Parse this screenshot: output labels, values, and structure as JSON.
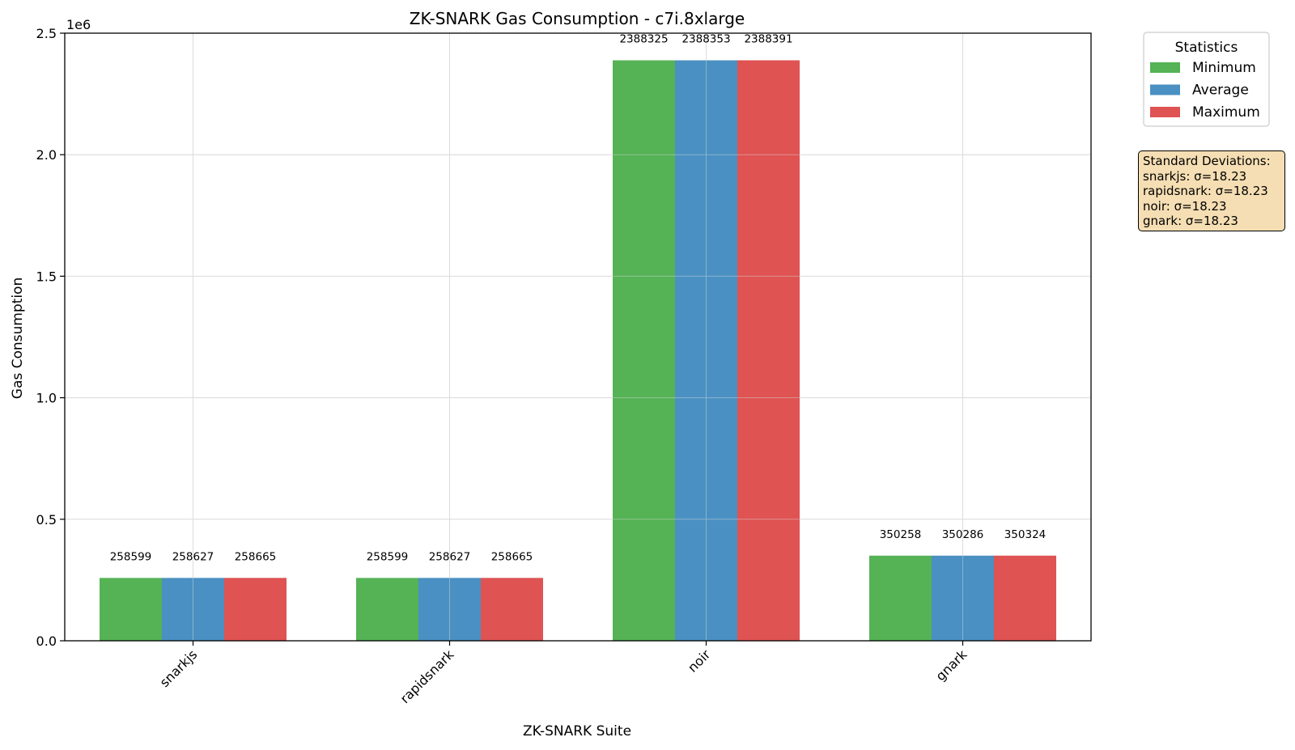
{
  "chart_data": {
    "type": "bar",
    "title": "ZK-SNARK Gas Consumption - c7i.8xlarge",
    "xlabel": "ZK-SNARK Suite",
    "ylabel": "Gas Consumption",
    "y_offset_label": "1e6",
    "ylim": [
      0,
      2.5
    ],
    "y_scale": 1000000,
    "y_ticks": [
      "0.0",
      "0.5",
      "1.0",
      "1.5",
      "2.0",
      "2.5"
    ],
    "grid": true,
    "legend_title": "Statistics",
    "legend_position": "outside-top-right",
    "categories": [
      "snarkjs",
      "rapidsnark",
      "noir",
      "gnark"
    ],
    "series": [
      {
        "name": "Minimum",
        "color": "#55b255",
        "values": [
          258599,
          258599,
          2388325,
          350258
        ]
      },
      {
        "name": "Average",
        "color": "#4a90c2",
        "values": [
          258627,
          258627,
          2388353,
          350286
        ]
      },
      {
        "name": "Maximum",
        "color": "#df5353",
        "values": [
          258665,
          258665,
          2388391,
          350324
        ]
      }
    ]
  },
  "std_box": {
    "title": "Standard Deviations:",
    "lines": [
      "snarkjs: σ=18.23",
      "rapidsnark: σ=18.23",
      "noir: σ=18.23",
      "gnark: σ=18.23"
    ]
  }
}
